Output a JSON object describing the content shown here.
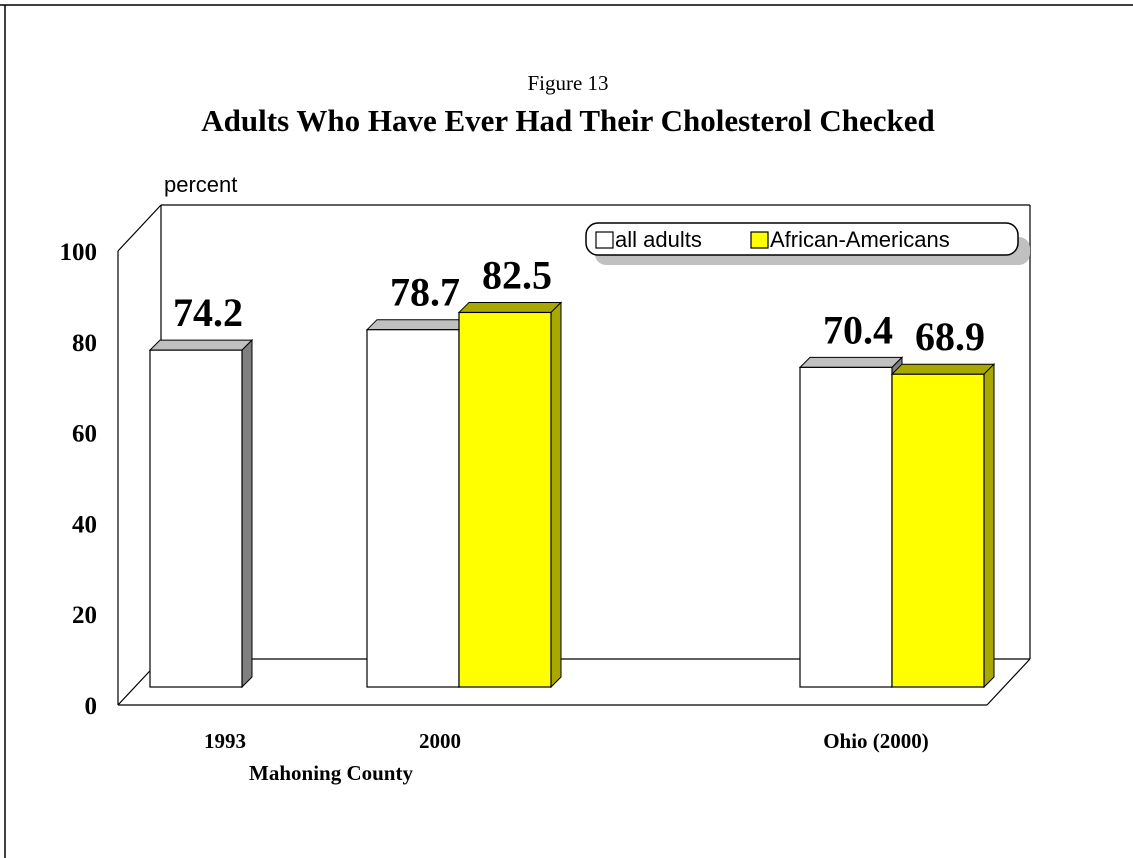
{
  "chart_data": {
    "type": "bar",
    "figure_label": "Figure 13",
    "title": "Adults Who Have Ever Had Their Cholesterol Checked",
    "ylabel": "percent",
    "ylim": [
      0,
      100
    ],
    "y_ticks": [
      "0",
      "20",
      "40",
      "60",
      "80",
      "100"
    ],
    "grid": false,
    "legend_position": "top-right",
    "three_d": true,
    "categories": [
      "1993",
      "2000",
      "Ohio (2000)"
    ],
    "group_label": "Mahoning County",
    "series": [
      {
        "name": "all adults",
        "color": "#ffffff",
        "values": [
          74.2,
          78.7,
          70.4
        ]
      },
      {
        "name": "African-Americans",
        "color": "#ffff00",
        "values": [
          null,
          82.5,
          68.9
        ]
      }
    ],
    "data_labels": [
      [
        "74.2",
        "78.7",
        "70.4"
      ],
      [
        null,
        "82.5",
        "68.9"
      ]
    ]
  }
}
